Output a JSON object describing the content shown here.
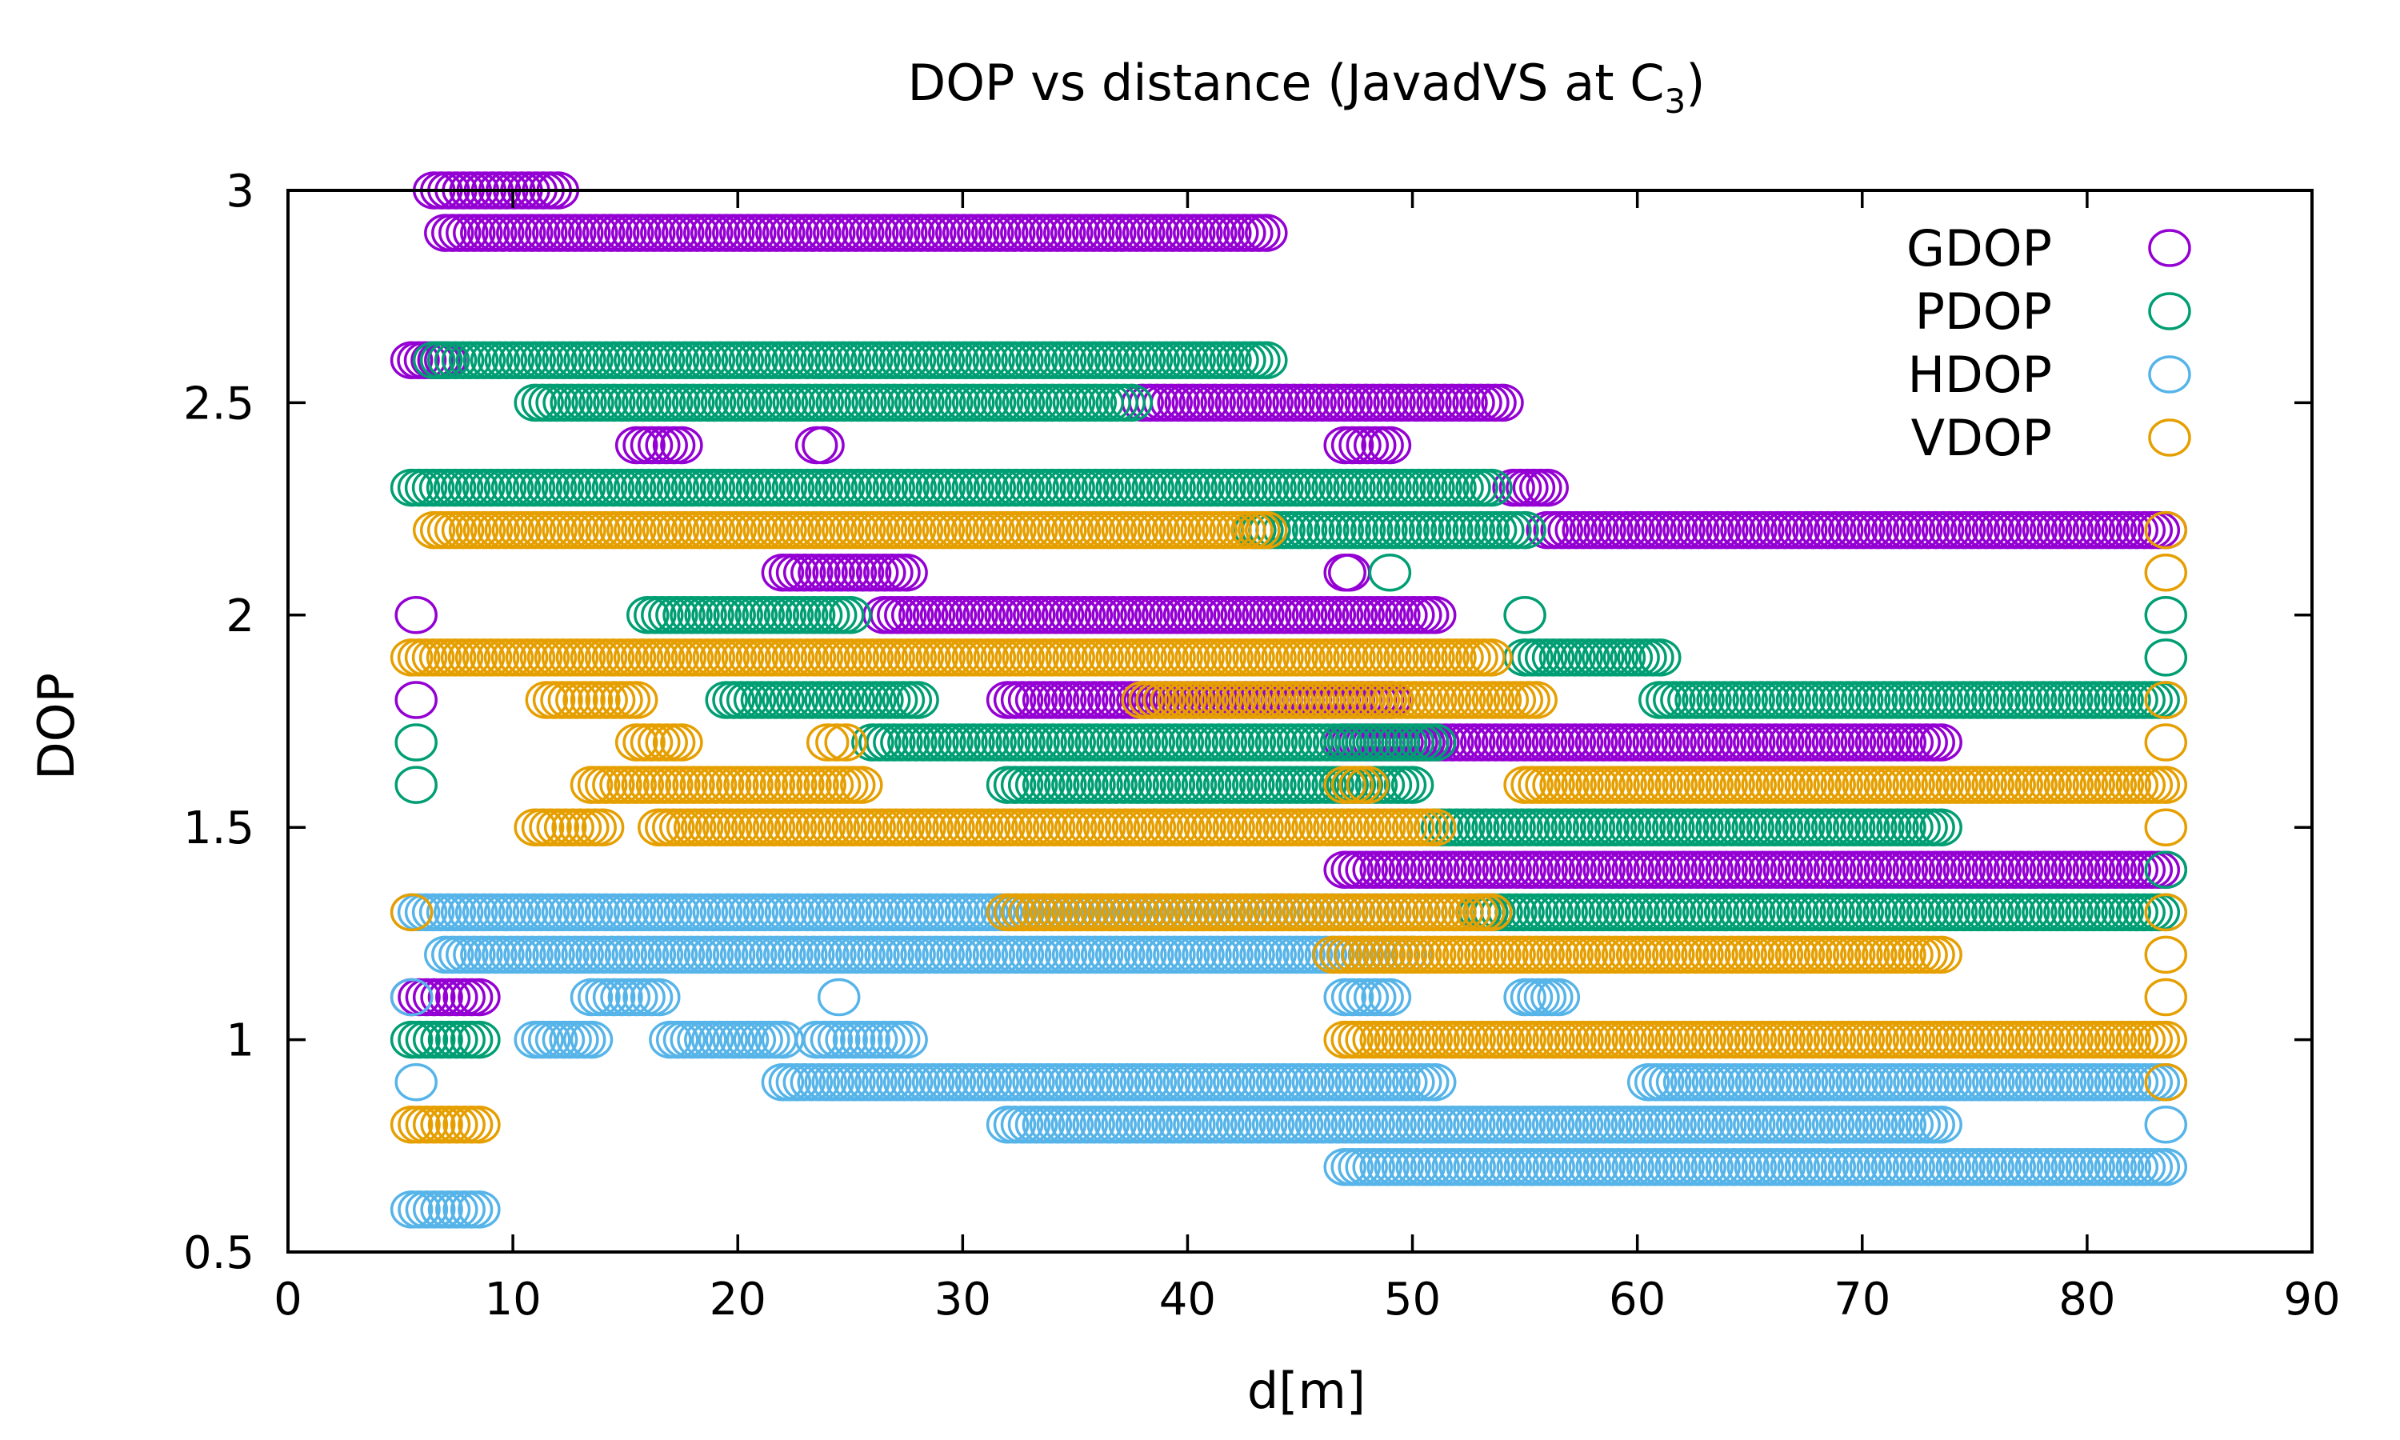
{
  "chart_data": {
    "type": "scatter",
    "title": "DOP vs distance (JavadVS at C",
    "title_sub": "3",
    "title_end": ")",
    "xlabel": "d[m]",
    "ylabel": "DOP",
    "xlim": [
      0,
      90
    ],
    "ylim": [
      0.5,
      3
    ],
    "xticks": [
      "0",
      "10",
      "20",
      "30",
      "40",
      "50",
      "60",
      "70",
      "80",
      "90"
    ],
    "yticks": [
      "0.5",
      "1",
      "1.5",
      "2",
      "2.5",
      "3"
    ],
    "legend_position": "top-right",
    "marker": "open-circle",
    "series": [
      {
        "name": "GDOP",
        "color": "#9400d3",
        "runs": [
          {
            "y": 3.0,
            "x": [
              6.5,
              12.0
            ]
          },
          {
            "y": 2.9,
            "x": [
              7.0,
              43.5
            ]
          },
          {
            "y": 2.6,
            "x": [
              5.5,
              7.0
            ]
          },
          {
            "y": 2.5,
            "x": [
              38.0,
              54.0
            ]
          },
          {
            "y": 2.4,
            "x": [
              15.5,
              17.5
            ]
          },
          {
            "y": 2.4,
            "x": [
              23.5,
              23.8
            ]
          },
          {
            "y": 2.4,
            "x": [
              47.0,
              49.0
            ]
          },
          {
            "y": 2.3,
            "x": [
              54.5,
              56.0
            ]
          },
          {
            "y": 2.2,
            "x": [
              56.0,
              83.5
            ]
          },
          {
            "y": 2.1,
            "x": [
              22.0,
              27.5
            ]
          },
          {
            "y": 2.1,
            "x": [
              47.0,
              47.2
            ]
          },
          {
            "y": 2.0,
            "x": [
              5.7,
              5.7
            ]
          },
          {
            "y": 2.0,
            "x": [
              26.5,
              51.0
            ]
          },
          {
            "y": 1.8,
            "x": [
              5.7,
              5.7
            ]
          },
          {
            "y": 1.8,
            "x": [
              32.0,
              49.0
            ]
          },
          {
            "y": 1.7,
            "x": [
              47.0,
              73.5
            ]
          },
          {
            "y": 1.4,
            "x": [
              47.0,
              83.5
            ]
          },
          {
            "y": 1.1,
            "x": [
              5.5,
              8.5
            ]
          }
        ]
      },
      {
        "name": "PDOP",
        "color": "#009e73",
        "runs": [
          {
            "y": 2.6,
            "x": [
              6.5,
              43.5
            ]
          },
          {
            "y": 2.5,
            "x": [
              11.0,
              37.5
            ]
          },
          {
            "y": 2.3,
            "x": [
              5.5,
              53.5
            ]
          },
          {
            "y": 2.2,
            "x": [
              43.0,
              55.0
            ]
          },
          {
            "y": 2.1,
            "x": [
              49.0,
              49.0
            ]
          },
          {
            "y": 2.0,
            "x": [
              16.0,
              25.0
            ]
          },
          {
            "y": 2.0,
            "x": [
              55.0,
              55.0
            ]
          },
          {
            "y": 2.0,
            "x": [
              83.5,
              83.5
            ]
          },
          {
            "y": 1.9,
            "x": [
              55.0,
              61.0
            ]
          },
          {
            "y": 1.9,
            "x": [
              83.5,
              83.5
            ]
          },
          {
            "y": 1.8,
            "x": [
              19.5,
              28.0
            ]
          },
          {
            "y": 1.8,
            "x": [
              61.0,
              83.5
            ]
          },
          {
            "y": 1.7,
            "x": [
              5.7,
              5.7
            ]
          },
          {
            "y": 1.7,
            "x": [
              26.0,
              51.0
            ]
          },
          {
            "y": 1.6,
            "x": [
              5.7,
              5.7
            ]
          },
          {
            "y": 1.6,
            "x": [
              32.0,
              50.0
            ]
          },
          {
            "y": 1.5,
            "x": [
              51.0,
              73.5
            ]
          },
          {
            "y": 1.4,
            "x": [
              83.5,
              83.5
            ]
          },
          {
            "y": 1.3,
            "x": [
              53.0,
              83.5
            ]
          },
          {
            "y": 1.0,
            "x": [
              5.5,
              8.5
            ]
          }
        ]
      },
      {
        "name": "HDOP",
        "color": "#56b4e9",
        "runs": [
          {
            "y": 1.3,
            "x": [
              5.5,
              53.5
            ]
          },
          {
            "y": 1.2,
            "x": [
              7.0,
              50.0
            ]
          },
          {
            "y": 1.1,
            "x": [
              5.5,
              5.5
            ]
          },
          {
            "y": 1.1,
            "x": [
              13.5,
              16.5
            ]
          },
          {
            "y": 1.1,
            "x": [
              24.5,
              24.5
            ]
          },
          {
            "y": 1.1,
            "x": [
              47.0,
              49.0
            ]
          },
          {
            "y": 1.1,
            "x": [
              55.0,
              56.5
            ]
          },
          {
            "y": 1.0,
            "x": [
              11.0,
              13.5
            ]
          },
          {
            "y": 1.0,
            "x": [
              17.0,
              22.0
            ]
          },
          {
            "y": 1.0,
            "x": [
              23.5,
              27.5
            ]
          },
          {
            "y": 0.9,
            "x": [
              5.7,
              5.7
            ]
          },
          {
            "y": 0.9,
            "x": [
              22.0,
              51.0
            ]
          },
          {
            "y": 0.9,
            "x": [
              60.5,
              83.5
            ]
          },
          {
            "y": 0.8,
            "x": [
              32.0,
              73.5
            ]
          },
          {
            "y": 0.8,
            "x": [
              83.5,
              83.5
            ]
          },
          {
            "y": 0.7,
            "x": [
              47.0,
              83.5
            ]
          },
          {
            "y": 0.6,
            "x": [
              5.5,
              8.5
            ]
          }
        ]
      },
      {
        "name": "VDOP",
        "color": "#e69f00",
        "runs": [
          {
            "y": 2.2,
            "x": [
              6.5,
              43.5
            ]
          },
          {
            "y": 2.2,
            "x": [
              83.5,
              83.5
            ]
          },
          {
            "y": 2.1,
            "x": [
              83.5,
              83.5
            ]
          },
          {
            "y": 1.9,
            "x": [
              5.5,
              53.5
            ]
          },
          {
            "y": 1.8,
            "x": [
              11.5,
              15.5
            ]
          },
          {
            "y": 1.8,
            "x": [
              38.0,
              55.5
            ]
          },
          {
            "y": 1.8,
            "x": [
              83.5,
              83.5
            ]
          },
          {
            "y": 1.7,
            "x": [
              15.5,
              17.5
            ]
          },
          {
            "y": 1.7,
            "x": [
              24.0,
              24.8
            ]
          },
          {
            "y": 1.7,
            "x": [
              83.5,
              83.5
            ]
          },
          {
            "y": 1.6,
            "x": [
              13.5,
              25.5
            ]
          },
          {
            "y": 1.6,
            "x": [
              47.0,
              48.0
            ]
          },
          {
            "y": 1.6,
            "x": [
              55.0,
              83.5
            ]
          },
          {
            "y": 1.5,
            "x": [
              11.0,
              14.0
            ]
          },
          {
            "y": 1.5,
            "x": [
              16.5,
              51.0
            ]
          },
          {
            "y": 1.5,
            "x": [
              83.5,
              83.5
            ]
          },
          {
            "y": 1.3,
            "x": [
              5.5,
              5.5
            ]
          },
          {
            "y": 1.3,
            "x": [
              32.0,
              53.5
            ]
          },
          {
            "y": 1.3,
            "x": [
              83.5,
              83.5
            ]
          },
          {
            "y": 1.2,
            "x": [
              46.5,
              73.5
            ]
          },
          {
            "y": 1.2,
            "x": [
              83.5,
              83.5
            ]
          },
          {
            "y": 1.1,
            "x": [
              83.5,
              83.5
            ]
          },
          {
            "y": 1.0,
            "x": [
              47.0,
              83.5
            ]
          },
          {
            "y": 0.9,
            "x": [
              83.5,
              83.5
            ]
          },
          {
            "y": 0.8,
            "x": [
              5.5,
              8.5
            ]
          }
        ]
      }
    ]
  }
}
